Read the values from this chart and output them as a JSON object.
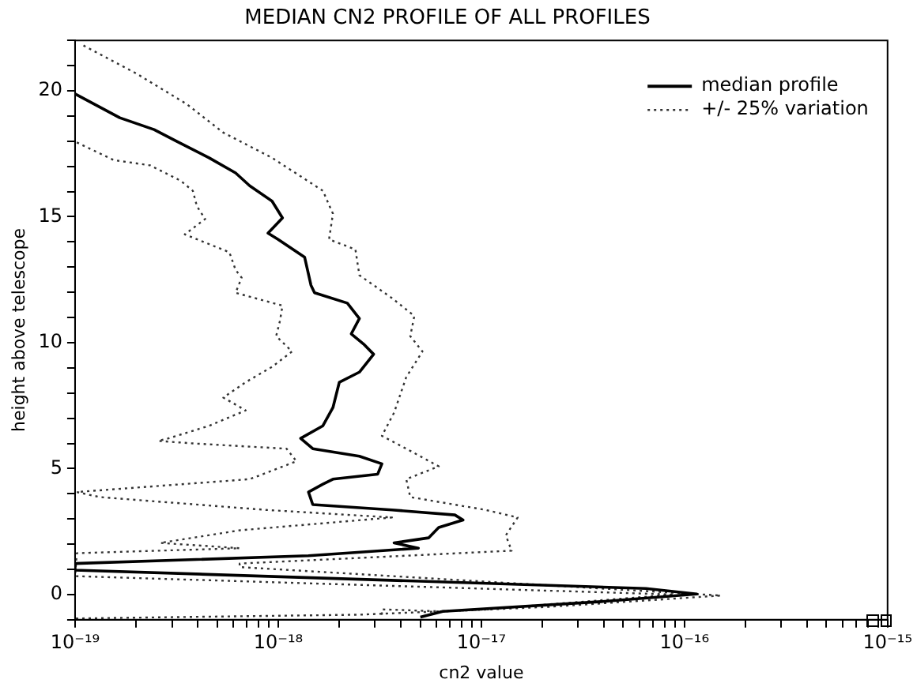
{
  "chart_data": {
    "type": "line",
    "title": "MEDIAN CN2 PROFILE OF ALL PROFILES",
    "xlabel": "cn2 value",
    "ylabel": "height above telescope",
    "log": "x",
    "xlim": [
      1e-19,
      1e-15
    ],
    "ylim": [
      -1,
      22
    ],
    "xticks": [
      {
        "value": 1e-19,
        "label": "10⁻¹⁹"
      },
      {
        "value": 2e-19,
        "label": null
      },
      {
        "value": 3e-19,
        "label": null
      },
      {
        "value": 4e-19,
        "label": null
      },
      {
        "value": 5e-19,
        "label": null
      },
      {
        "value": 6e-19,
        "label": null
      },
      {
        "value": 7e-19,
        "label": null
      },
      {
        "value": 8e-19,
        "label": null
      },
      {
        "value": 9e-19,
        "label": null
      },
      {
        "value": 1e-18,
        "label": "10⁻¹⁸"
      },
      {
        "value": 2e-18,
        "label": null
      },
      {
        "value": 3e-18,
        "label": null
      },
      {
        "value": 4e-18,
        "label": null
      },
      {
        "value": 5e-18,
        "label": null
      },
      {
        "value": 6e-18,
        "label": null
      },
      {
        "value": 7e-18,
        "label": null
      },
      {
        "value": 8e-18,
        "label": null
      },
      {
        "value": 9e-18,
        "label": null
      },
      {
        "value": 1e-17,
        "label": "10⁻¹⁷"
      },
      {
        "value": 2e-17,
        "label": null
      },
      {
        "value": 3e-17,
        "label": null
      },
      {
        "value": 4e-17,
        "label": null
      },
      {
        "value": 5e-17,
        "label": null
      },
      {
        "value": 6e-17,
        "label": null
      },
      {
        "value": 7e-17,
        "label": null
      },
      {
        "value": 8e-17,
        "label": null
      },
      {
        "value": 9e-17,
        "label": null
      },
      {
        "value": 1e-16,
        "label": "10⁻¹⁶"
      },
      {
        "value": 2e-16,
        "label": null
      },
      {
        "value": 3e-16,
        "label": null
      },
      {
        "value": 4e-16,
        "label": null
      },
      {
        "value": 5e-16,
        "label": null
      },
      {
        "value": 6e-16,
        "label": null
      },
      {
        "value": 7e-16,
        "label": null
      },
      {
        "value": 8e-16,
        "label": null
      },
      {
        "value": 9e-16,
        "label": null
      },
      {
        "value": 1e-15,
        "label": "10⁻¹⁵"
      }
    ],
    "yticks": [
      {
        "value": -1,
        "label": null
      },
      0,
      {
        "value": 1,
        "label": null
      },
      {
        "value": 2,
        "label": null
      },
      {
        "value": 3,
        "label": null
      },
      {
        "value": 4,
        "label": null
      },
      5,
      {
        "value": 6,
        "label": null
      },
      {
        "value": 7,
        "label": null
      },
      {
        "value": 8,
        "label": null
      },
      {
        "value": 9,
        "label": null
      },
      10,
      {
        "value": 11,
        "label": null
      },
      {
        "value": 12,
        "label": null
      },
      {
        "value": 13,
        "label": null
      },
      {
        "value": 14,
        "label": null
      },
      15,
      {
        "value": 16,
        "label": null
      },
      {
        "value": 17,
        "label": null
      },
      {
        "value": 18,
        "label": null
      },
      {
        "value": 19,
        "label": null
      },
      20,
      {
        "value": 21,
        "label": null
      },
      {
        "value": 22,
        "label": null
      }
    ],
    "grid": false,
    "legend": "top right",
    "marker": "none",
    "series": [
      {
        "name": "median profile",
        "color": "#000000",
        "line_style": "solid",
        "x": [
          1e-19,
          1.66e-19,
          2.45e-19,
          3.16e-19,
          4.57e-19,
          6.17e-19,
          7.24e-19,
          9.33e-19,
          1.05e-18,
          8.91e-19,
          1e-18,
          1.35e-18,
          1.45e-18,
          1.51e-18,
          2.19e-18,
          2.51e-18,
          2.29e-18,
          2.63e-18,
          2.95e-18,
          2.51e-18,
          2e-18,
          1.86e-18,
          1.66e-18,
          1.29e-18,
          1.48e-18,
          2.51e-18,
          3.24e-18,
          3.09e-18,
          1.86e-18,
          1.66e-18,
          1.41e-18,
          1.48e-18,
          3.63e-18,
          7.41e-18,
          8.13e-18,
          6.17e-18,
          5.5e-18,
          3.72e-18,
          4.9e-18,
          1.41e-18,
          1e-19,
          1e-19,
          6.46e-17,
          1.15e-16,
          3.89e-17,
          6.46e-18,
          5.01e-18
        ],
        "values": [
          19.88,
          18.93,
          18.46,
          18,
          17.34,
          16.74,
          16.23,
          15.62,
          14.95,
          14.35,
          14.1,
          13.39,
          12.28,
          11.98,
          11.57,
          10.96,
          10.35,
          9.95,
          9.54,
          8.83,
          8.43,
          7.42,
          6.7,
          6.2,
          5.79,
          5.49,
          5.19,
          4.78,
          4.58,
          4.38,
          4.07,
          3.57,
          3.36,
          3.16,
          2.96,
          2.66,
          2.25,
          2.05,
          1.84,
          1.54,
          1.23,
          0.97,
          0.24,
          0.02,
          -0.28,
          -0.67,
          -0.9
        ]
      },
      {
        "name": "+/- 25% variation",
        "color": "#333333",
        "line_style": "dotted",
        "x": [
          1.1e-19,
          2e-19,
          3.55e-19,
          5.37e-19,
          9.33e-19,
          1.66e-18,
          1.86e-18,
          1.78e-18,
          2.4e-18,
          2.51e-18,
          3.63e-18,
          4.68e-18,
          4.47e-18,
          5.13e-18,
          4.27e-18,
          3.72e-18,
          3.24e-18,
          4.27e-18,
          6.17e-18,
          4.27e-18,
          4.47e-18,
          1.05e-17,
          1.51e-17,
          1.32e-17,
          1.41e-17,
          6.46e-19,
          6.46e-19,
          1.51e-16,
          2.14e-17,
          6.46e-18,
          3.24e-18,
          3.24e-18
        ],
        "values": [
          21.8,
          20.69,
          19.47,
          18.34,
          17.34,
          16.03,
          15.12,
          14.1,
          13.7,
          12.68,
          11.77,
          11.06,
          10.26,
          9.65,
          8.63,
          7.22,
          6.3,
          5.79,
          5.09,
          4.58,
          3.87,
          3.36,
          3.06,
          2.35,
          1.74,
          1.23,
          1.09,
          -0.04,
          -0.49,
          -0.67,
          -0.59,
          -0.8
        ]
      },
      {
        "color": "#333333",
        "line_style": "dotted",
        "x": [
          1.02e-19,
          1.55e-19,
          2.34e-19,
          3.31e-19,
          3.8e-19,
          3.98e-19,
          4.37e-19,
          3.47e-19,
          5.75e-19,
          6.17e-19,
          6.61e-19,
          6.17e-19,
          1.05e-18,
          1.02e-18,
          9.77e-19,
          1.17e-18,
          9.33e-19,
          6.92e-19,
          5.37e-19,
          6.92e-19,
          4.57e-19,
          2.88e-19,
          2.57e-19,
          3.8e-19,
          1.1e-18,
          1.23e-18,
          7.24e-19,
          1.02e-19,
          1.32e-19,
          8.71e-19,
          3.63e-18,
          6.46e-19,
          2.63e-19,
          6.46e-19,
          1.02e-19,
          1e-19,
          8.91e-17,
          1e-17,
          2.5e-18,
          1e-19
        ],
        "values": [
          17.95,
          17.25,
          17.04,
          16.43,
          16.03,
          15.42,
          14.91,
          14.3,
          13.59,
          12.89,
          12.58,
          11.98,
          11.47,
          10.86,
          10.26,
          9.65,
          9.04,
          8.43,
          7.82,
          7.31,
          6.7,
          6.2,
          6.1,
          6,
          5.79,
          5.29,
          4.58,
          4.07,
          3.87,
          3.36,
          3.06,
          2.55,
          2.05,
          1.84,
          1.64,
          0.73,
          0,
          -0.6,
          -0.8,
          -0.95
        ]
      }
    ]
  }
}
